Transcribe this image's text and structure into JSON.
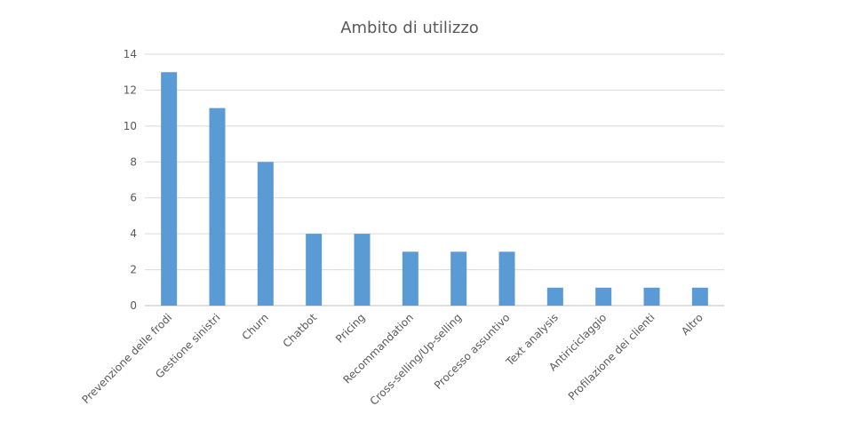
{
  "chart_data": {
    "type": "bar",
    "title": "Ambito di utilizzo",
    "categories": [
      "Prevenzione delle frodi",
      "Gestione sinistri",
      "Churn",
      "Chatbot",
      "Pricing",
      "Recommandation",
      "Cross-selling/Up-selling",
      "Processo assuntivo",
      "Text analysis",
      "Antiriciclaggio",
      "Profilazione dei clienti",
      "Altro"
    ],
    "values": [
      13,
      11,
      8,
      4,
      4,
      3,
      3,
      3,
      1,
      1,
      1,
      1
    ],
    "ylim": [
      0,
      14
    ],
    "yticks": [
      0,
      2,
      4,
      6,
      8,
      10,
      12,
      14
    ],
    "grid": true,
    "legend": "none",
    "colors": {
      "bar": "#5b9bd5",
      "grid": "#d9d9d9",
      "text": "#595959"
    }
  }
}
